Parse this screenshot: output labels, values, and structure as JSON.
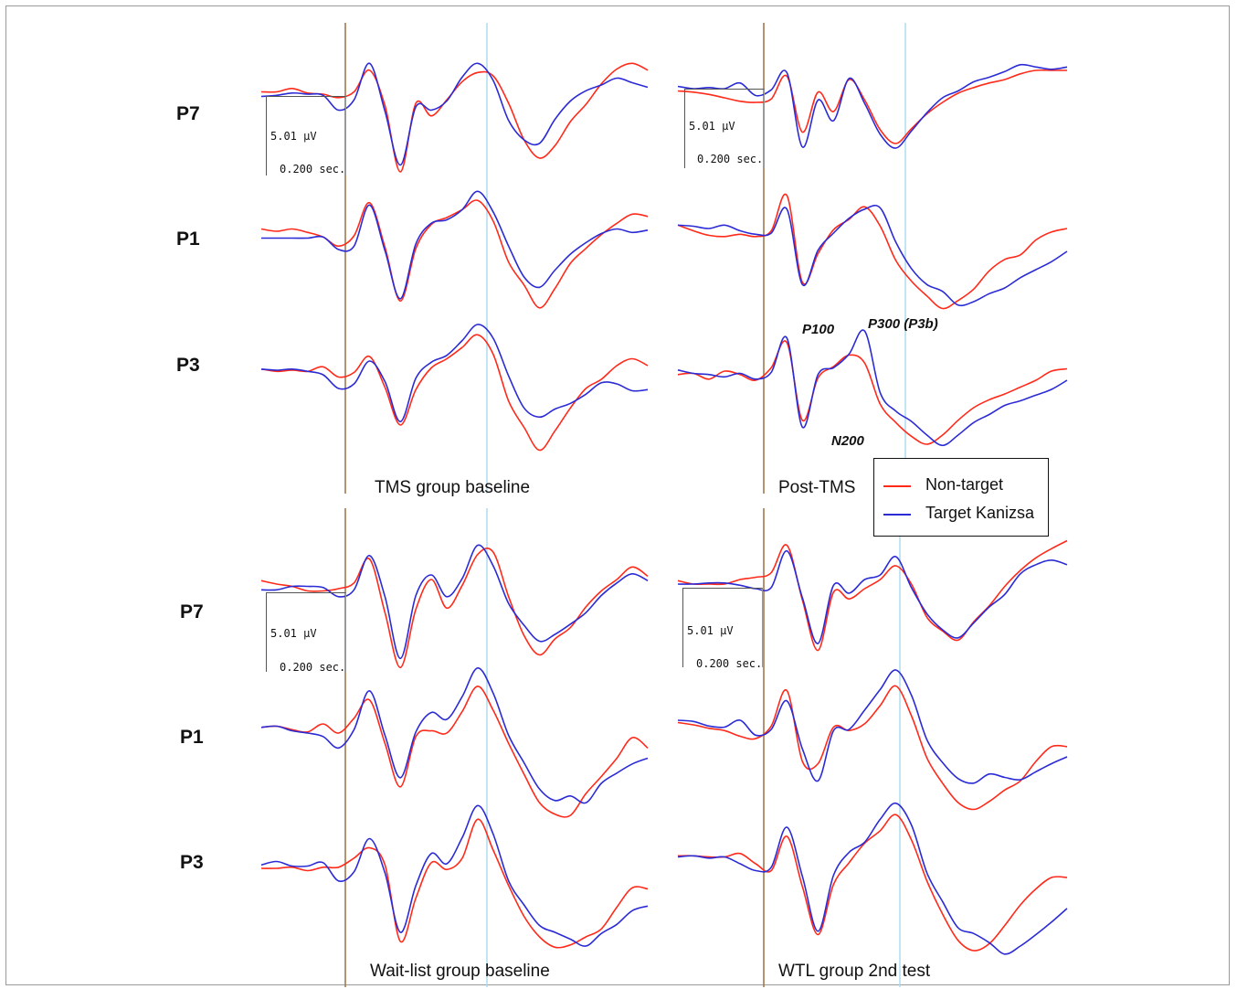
{
  "chart_data": {
    "type": "line",
    "title": "",
    "colors": {
      "non_target": "#ff2a1a",
      "target_kanizsa": "#2b2bd6",
      "onset_line": "#a0784e",
      "p300_line": "#a8d8ee"
    },
    "legend": {
      "placement": "center-right",
      "entries": [
        "Non-target",
        "Target Kanizsa"
      ]
    },
    "scale": {
      "amplitude": "5.01 µV",
      "time": "0.200 sec."
    },
    "components": [
      "P100",
      "N200",
      "P300 (P3b)"
    ],
    "panels": [
      {
        "title": "TMS group baseline",
        "channels": [
          {
            "electrode": "P7",
            "series": [
              {
                "name": "Non-target",
                "values": [
                  0.2,
                  0.2,
                  0.5,
                  0.1,
                  0.0,
                  -0.3,
                  0.2,
                  2.1,
                  -1.0,
                  -6.8,
                  -0.8,
                  -1.9,
                  -0.5,
                  1.1,
                  1.9,
                  1.6,
                  -0.8,
                  -4.0,
                  -5.6,
                  -4.5,
                  -2.4,
                  -0.9,
                  0.9,
                  2.2,
                  2.7,
                  2.1
                ]
              },
              {
                "name": "Target Kanizsa",
                "values": [
                  -0.2,
                  -0.1,
                  0.1,
                  0.0,
                  -0.1,
                  -1.4,
                  -0.5,
                  2.7,
                  -1.5,
                  -6.2,
                  -1.1,
                  -1.4,
                  -0.6,
                  1.5,
                  2.7,
                  1.2,
                  -2.3,
                  -4.0,
                  -4.3,
                  -2.2,
                  -0.6,
                  0.3,
                  0.8,
                  1.4,
                  1.0,
                  0.6
                ]
              }
            ]
          },
          {
            "electrode": "P1",
            "series": [
              {
                "name": "Non-target",
                "values": [
                  0.6,
                  0.4,
                  0.6,
                  0.3,
                  -0.1,
                  -0.9,
                  0.0,
                  2.9,
                  -1.0,
                  -5.7,
                  -1.1,
                  1.0,
                  1.6,
                  2.3,
                  3.1,
                  1.3,
                  -2.3,
                  -4.3,
                  -6.3,
                  -4.6,
                  -2.4,
                  -1.1,
                  0.1,
                  1.1,
                  1.9,
                  1.7
                ]
              },
              {
                "name": "Target Kanizsa",
                "values": [
                  -0.2,
                  -0.2,
                  -0.2,
                  -0.2,
                  -0.1,
                  -1.2,
                  -0.9,
                  2.7,
                  -1.3,
                  -5.5,
                  -0.7,
                  1.1,
                  1.4,
                  2.3,
                  3.9,
                  2.1,
                  -0.9,
                  -3.6,
                  -4.5,
                  -3.0,
                  -1.6,
                  -0.6,
                  0.2,
                  0.6,
                  0.3,
                  0.5
                ]
              }
            ]
          },
          {
            "electrode": "P3",
            "series": [
              {
                "name": "Non-target",
                "values": [
                  0.1,
                  -0.1,
                  0.0,
                  -0.1,
                  0.3,
                  -0.6,
                  -0.2,
                  1.2,
                  -1.5,
                  -4.8,
                  -1.7,
                  0.2,
                  1.0,
                  2.0,
                  3.1,
                  1.4,
                  -2.7,
                  -5.0,
                  -7.0,
                  -5.3,
                  -3.3,
                  -1.6,
                  -0.8,
                  0.4,
                  1.0,
                  0.4
                ]
              },
              {
                "name": "Target Kanizsa",
                "values": [
                  0.1,
                  0.0,
                  0.1,
                  -0.1,
                  -0.4,
                  -1.6,
                  -1.2,
                  0.8,
                  -1.0,
                  -4.5,
                  -0.7,
                  0.7,
                  1.3,
                  2.6,
                  4.0,
                  2.8,
                  -0.5,
                  -3.3,
                  -4.1,
                  -3.4,
                  -2.9,
                  -2.1,
                  -1.1,
                  -1.2,
                  -1.8,
                  -1.7
                ]
              }
            ]
          }
        ]
      },
      {
        "title": "Post-TMS",
        "channels": [
          {
            "electrode": "P7",
            "series": [
              {
                "name": "Non-target",
                "values": [
                  -0.2,
                  -0.3,
                  -0.5,
                  -0.8,
                  -1.1,
                  -1.2,
                  -0.9,
                  1.1,
                  -3.8,
                  -0.3,
                  -2.0,
                  0.8,
                  -1.0,
                  -3.6,
                  -4.8,
                  -3.5,
                  -2.2,
                  -1.2,
                  -0.4,
                  0.1,
                  0.5,
                  0.8,
                  1.3,
                  1.6,
                  1.6,
                  1.6
                ]
              },
              {
                "name": "Target Kanizsa",
                "values": [
                  0.2,
                  0.0,
                  0.1,
                  0.0,
                  0.5,
                  -0.6,
                  -0.1,
                  1.4,
                  -5.1,
                  -1.0,
                  -2.8,
                  0.9,
                  -1.3,
                  -4.0,
                  -5.2,
                  -3.7,
                  -2.1,
                  -0.8,
                  -0.2,
                  0.6,
                  1.0,
                  1.5,
                  2.1,
                  1.9,
                  1.7,
                  1.9
                ]
              }
            ]
          },
          {
            "electrode": "P1",
            "series": [
              {
                "name": "Non-target",
                "values": [
                  0.7,
                  0.2,
                  -0.2,
                  -0.3,
                  -0.1,
                  -0.3,
                  0.2,
                  3.3,
                  -4.3,
                  -1.8,
                  0.3,
                  1.2,
                  2.3,
                  0.6,
                  -2.4,
                  -4.2,
                  -5.5,
                  -6.6,
                  -5.9,
                  -4.9,
                  -3.3,
                  -2.3,
                  -1.9,
                  -0.6,
                  0.1,
                  0.4
                ]
              },
              {
                "name": "Target Kanizsa",
                "values": [
                  0.7,
                  0.6,
                  0.4,
                  0.7,
                  0.2,
                  -0.1,
                  0.0,
                  2.1,
                  -4.5,
                  -1.5,
                  0.0,
                  1.3,
                  2.1,
                  2.2,
                  -0.8,
                  -3.1,
                  -4.5,
                  -5.1,
                  -6.3,
                  -6.0,
                  -5.3,
                  -4.8,
                  -3.9,
                  -3.2,
                  -2.5,
                  -1.6
                ]
              }
            ]
          },
          {
            "electrode": "P3",
            "series": [
              {
                "name": "Non-target",
                "values": [
                  -0.3,
                  -0.2,
                  -0.7,
                  0.0,
                  -0.3,
                  -0.8,
                  0.3,
                  2.5,
                  -4.3,
                  -0.6,
                  0.4,
                  1.4,
                  0.7,
                  -2.9,
                  -4.5,
                  -5.7,
                  -6.4,
                  -5.6,
                  -4.3,
                  -3.2,
                  -2.5,
                  -2.0,
                  -1.4,
                  -0.8,
                  0.0,
                  0.2
                ]
              },
              {
                "name": "Target Kanizsa",
                "values": [
                  0.1,
                  -0.2,
                  -0.3,
                  -0.5,
                  -0.2,
                  -0.7,
                  -0.1,
                  2.9,
                  -4.9,
                  -0.3,
                  0.3,
                  1.5,
                  3.5,
                  -1.9,
                  -3.5,
                  -4.4,
                  -5.6,
                  -6.5,
                  -5.6,
                  -4.5,
                  -3.8,
                  -3.0,
                  -2.6,
                  -2.1,
                  -1.6,
                  -0.8
                ]
              }
            ]
          }
        ]
      },
      {
        "title": "Wait-list group baseline",
        "channels": [
          {
            "electrode": "P7",
            "series": [
              {
                "name": "Non-target",
                "values": [
                  0.7,
                  0.4,
                  0.2,
                  -0.2,
                  -0.2,
                  0.0,
                  0.5,
                  2.6,
                  -2.1,
                  -6.9,
                  -1.8,
                  0.8,
                  -1.7,
                  0.3,
                  3.0,
                  3.2,
                  -0.7,
                  -4.1,
                  -5.8,
                  -4.4,
                  -3.4,
                  -1.6,
                  -0.2,
                  0.8,
                  1.9,
                  1.1
                ]
              },
              {
                "name": "Target Kanizsa",
                "values": [
                  -0.1,
                  -0.1,
                  0.2,
                  0.2,
                  0.1,
                  -0.7,
                  -0.1,
                  2.9,
                  -0.7,
                  -6.1,
                  -0.6,
                  1.2,
                  -0.7,
                  0.9,
                  3.8,
                  2.0,
                  -1.3,
                  -3.2,
                  -4.6,
                  -4.0,
                  -3.1,
                  -2.1,
                  -0.6,
                  0.5,
                  1.3,
                  0.7
                ]
              }
            ]
          },
          {
            "electrode": "P1",
            "series": [
              {
                "name": "Non-target",
                "values": [
                  0.1,
                  0.2,
                  -0.1,
                  -0.3,
                  0.4,
                  -0.4,
                  0.9,
                  2.5,
                  -1.3,
                  -5.1,
                  -0.7,
                  -0.2,
                  -0.4,
                  1.5,
                  3.7,
                  1.6,
                  -1.3,
                  -4.0,
                  -6.5,
                  -7.5,
                  -7.6,
                  -5.7,
                  -4.2,
                  -2.6,
                  -0.8,
                  -1.7
                ]
              },
              {
                "name": "Target Kanizsa",
                "values": [
                  0.1,
                  0.2,
                  -0.2,
                  -0.4,
                  -0.7,
                  -1.7,
                  -0.1,
                  3.3,
                  -0.6,
                  -4.3,
                  -0.3,
                  1.4,
                  0.8,
                  2.8,
                  5.3,
                  3.1,
                  -0.6,
                  -3.0,
                  -5.3,
                  -6.3,
                  -5.9,
                  -6.5,
                  -4.8,
                  -3.9,
                  -3.1,
                  -2.6
                ]
              }
            ]
          },
          {
            "electrode": "P3",
            "series": [
              {
                "name": "Non-target",
                "values": [
                  -0.4,
                  -0.4,
                  -0.3,
                  -0.6,
                  -0.3,
                  -0.3,
                  0.5,
                  1.4,
                  -0.1,
                  -6.8,
                  -3.0,
                  0.1,
                  -0.5,
                  0.5,
                  3.9,
                  1.2,
                  -1.9,
                  -4.6,
                  -6.4,
                  -7.3,
                  -7.1,
                  -6.4,
                  -5.7,
                  -3.8,
                  -2.1,
                  -2.2
                ]
              },
              {
                "name": "Target Kanizsa",
                "values": [
                  -0.1,
                  0.2,
                  -0.2,
                  -0.2,
                  0.1,
                  -1.5,
                  -0.7,
                  2.2,
                  -0.8,
                  -6.0,
                  -1.9,
                  0.9,
                  0.0,
                  2.3,
                  5.1,
                  2.6,
                  -1.5,
                  -3.6,
                  -5.4,
                  -6.0,
                  -6.6,
                  -7.2,
                  -6.1,
                  -5.3,
                  -4.1,
                  -3.7
                ]
              }
            ]
          }
        ]
      },
      {
        "title": "WTL group 2nd test",
        "channels": [
          {
            "electrode": "P7",
            "series": [
              {
                "name": "Non-target",
                "values": [
                  0.3,
                  0.0,
                  0.0,
                  0.0,
                  0.4,
                  0.6,
                  1.0,
                  3.4,
                  -1.4,
                  -5.8,
                  -0.7,
                  -1.3,
                  -0.4,
                  0.4,
                  1.6,
                  0.0,
                  -2.9,
                  -4.1,
                  -4.9,
                  -3.3,
                  -1.9,
                  -0.2,
                  1.2,
                  2.3,
                  3.1,
                  3.8
                ]
              },
              {
                "name": "Target Kanizsa",
                "values": [
                  0.0,
                  0.0,
                  0.1,
                  0.1,
                  -0.1,
                  -0.4,
                  -0.3,
                  2.9,
                  -1.2,
                  -5.2,
                  -0.1,
                  -0.8,
                  0.4,
                  0.8,
                  2.4,
                  -0.3,
                  -2.6,
                  -4.0,
                  -4.7,
                  -3.4,
                  -2.0,
                  -0.9,
                  0.9,
                  1.7,
                  2.1,
                  1.7
                ]
              }
            ]
          },
          {
            "electrode": "P1",
            "series": [
              {
                "name": "Non-target",
                "values": [
                  0.2,
                  0.0,
                  -0.3,
                  -0.5,
                  -1.0,
                  -1.2,
                  -0.1,
                  3.0,
                  -3.2,
                  -3.4,
                  -0.2,
                  -0.5,
                  0.1,
                  1.7,
                  3.4,
                  0.8,
                  -2.9,
                  -5.1,
                  -6.8,
                  -7.4,
                  -6.7,
                  -5.7,
                  -4.9,
                  -3.2,
                  -1.9,
                  -1.9
                ]
              },
              {
                "name": "Target Kanizsa",
                "values": [
                  0.4,
                  0.3,
                  -0.1,
                  -0.2,
                  0.4,
                  -0.9,
                  -0.4,
                  2.1,
                  -2.1,
                  -4.9,
                  -0.5,
                  -0.4,
                  1.3,
                  3.1,
                  4.8,
                  2.6,
                  -1.3,
                  -3.3,
                  -4.7,
                  -5.1,
                  -4.3,
                  -4.6,
                  -4.8,
                  -4.1,
                  -3.4,
                  -2.8
                ]
              }
            ]
          },
          {
            "electrode": "P3",
            "series": [
              {
                "name": "Non-target",
                "values": [
                  0.3,
                  0.3,
                  0.2,
                  0.2,
                  0.5,
                  -0.4,
                  -1.0,
                  2.0,
                  -2.4,
                  -6.6,
                  -2.2,
                  -0.3,
                  1.4,
                  2.5,
                  3.9,
                  1.7,
                  -1.9,
                  -4.8,
                  -7.1,
                  -8.0,
                  -7.4,
                  -5.8,
                  -4.0,
                  -2.6,
                  -1.6,
                  -1.6
                ]
              },
              {
                "name": "Target Kanizsa",
                "values": [
                  0.2,
                  0.3,
                  0.1,
                  0.2,
                  -0.4,
                  -1.0,
                  -0.7,
                  2.8,
                  -1.5,
                  -6.3,
                  -1.4,
                  0.6,
                  1.5,
                  3.5,
                  4.9,
                  3.0,
                  -1.2,
                  -3.7,
                  -6.0,
                  -6.5,
                  -7.3,
                  -8.3,
                  -7.6,
                  -6.6,
                  -5.5,
                  -4.3
                ]
              }
            ]
          }
        ]
      }
    ]
  }
}
